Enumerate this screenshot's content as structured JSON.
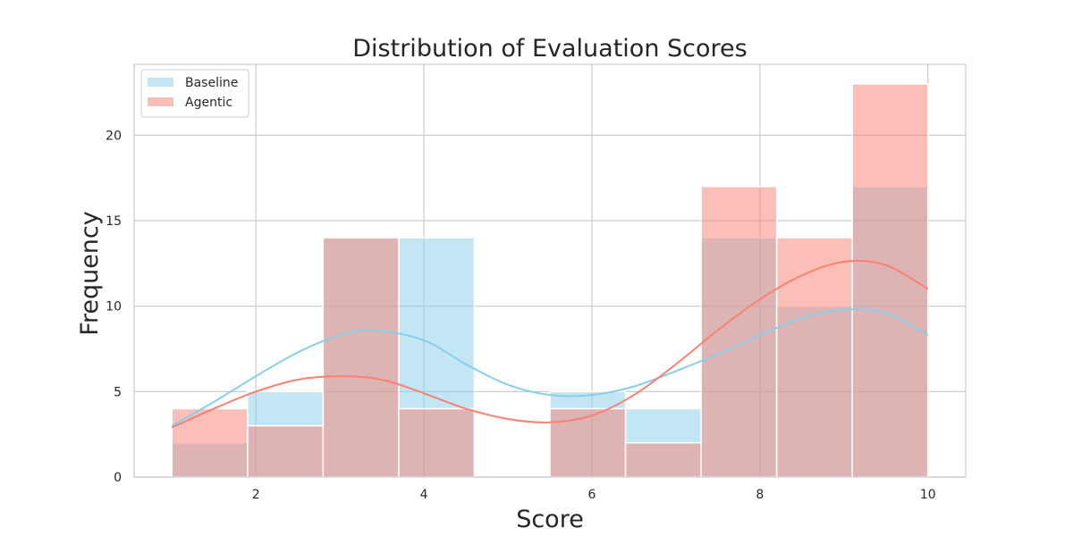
{
  "chart_data": {
    "type": "histogram",
    "title": "Distribution of Evaluation Scores",
    "xlabel": "Score",
    "ylabel": "Frequency",
    "xlim": [
      0.55,
      10.45
    ],
    "ylim": [
      0,
      24.15
    ],
    "x_ticks": [
      2,
      4,
      6,
      8,
      10
    ],
    "y_ticks": [
      0,
      5,
      10,
      15,
      20
    ],
    "grid": true,
    "legend_position": "upper left",
    "bin_edges": [
      1.0,
      1.9,
      2.8,
      3.7,
      4.6,
      5.5,
      6.4,
      7.3,
      8.2,
      9.1,
      10.0
    ],
    "series": [
      {
        "name": "Baseline",
        "color": "#87ceeb",
        "counts": [
          2,
          5,
          14,
          14,
          0,
          5,
          4,
          14,
          10,
          17
        ],
        "kde": {
          "x": [
            1.0,
            1.5,
            2.0,
            2.5,
            3.0,
            3.4,
            4.0,
            4.5,
            5.0,
            5.5,
            6.0,
            6.5,
            7.0,
            7.5,
            8.0,
            8.5,
            9.0,
            9.5,
            10.0
          ],
          "y": [
            3.0,
            4.4,
            5.9,
            7.3,
            8.3,
            8.6,
            8.0,
            6.6,
            5.4,
            4.8,
            4.8,
            5.3,
            6.2,
            7.2,
            8.3,
            9.3,
            9.8,
            9.6,
            8.3
          ]
        }
      },
      {
        "name": "Agentic",
        "color": "#fa8072",
        "counts": [
          4,
          3,
          14,
          4,
          0,
          4,
          2,
          17,
          14,
          23
        ],
        "kde": {
          "x": [
            1.0,
            1.5,
            2.0,
            2.5,
            3.0,
            3.5,
            4.0,
            4.5,
            5.0,
            5.5,
            6.0,
            6.5,
            7.0,
            7.5,
            8.0,
            8.5,
            9.0,
            9.5,
            10.0
          ],
          "y": [
            2.9,
            4.0,
            5.0,
            5.7,
            5.9,
            5.7,
            4.9,
            4.0,
            3.4,
            3.2,
            3.6,
            4.8,
            6.6,
            8.6,
            10.4,
            11.8,
            12.6,
            12.4,
            11.0
          ]
        }
      }
    ]
  }
}
